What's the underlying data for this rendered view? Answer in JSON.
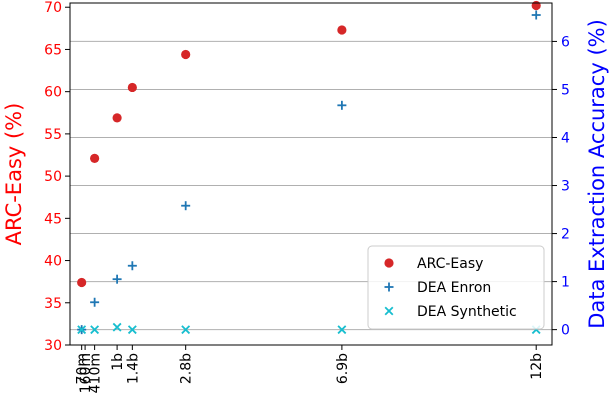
{
  "chart_data": {
    "type": "scatter",
    "x_categories": [
      "70m",
      "160m",
      "410m",
      "1b",
      "1.4b",
      "2.8b",
      "6.9b",
      "12b"
    ],
    "x_tick_labels": [
      "70m",
      "160m",
      "410m",
      "1b",
      "1.4b",
      "2.8b",
      "6.9b",
      "12b"
    ],
    "x_values_billions": [
      0.07,
      0.16,
      0.41,
      1.0,
      1.4,
      2.8,
      6.9,
      12.0
    ],
    "left_axis": {
      "label": "ARC-Easy (%)",
      "color": "#ff0000",
      "ylim": [
        30,
        70.5
      ],
      "ticks": [
        30,
        35,
        40,
        45,
        50,
        55,
        60,
        65,
        70
      ]
    },
    "right_axis": {
      "label": "Data Extraction Accuracy (%)",
      "color": "#0000ff",
      "ylim": [
        -0.32,
        6.8
      ],
      "ticks": [
        0,
        1,
        2,
        3,
        4,
        5,
        6
      ]
    },
    "grid": "horizontal lines on right-axis ticks",
    "legend_position": "lower-right",
    "series": [
      {
        "name": "ARC-Easy",
        "axis": "left",
        "marker": "circle",
        "color": "#d62728",
        "x": [
          0.07,
          0.41,
          1.0,
          1.4,
          2.8,
          6.9,
          12.0
        ],
        "values": [
          37.4,
          52.1,
          56.9,
          60.5,
          64.4,
          67.3,
          70.2
        ]
      },
      {
        "name": "DEA Enron",
        "axis": "right",
        "marker": "plus",
        "color": "#1f77b4",
        "x": [
          0.07,
          0.41,
          1.0,
          1.4,
          2.8,
          6.9,
          12.0
        ],
        "values": [
          0.0,
          0.57,
          1.05,
          1.33,
          2.58,
          4.67,
          6.55
        ]
      },
      {
        "name": "DEA Synthetic",
        "axis": "right",
        "marker": "x",
        "color": "#17becf",
        "x": [
          0.07,
          0.41,
          1.0,
          1.4,
          2.8,
          6.9,
          12.0
        ],
        "values": [
          0.0,
          0.0,
          0.05,
          0.0,
          0.0,
          0.0,
          0.0
        ]
      }
    ]
  }
}
